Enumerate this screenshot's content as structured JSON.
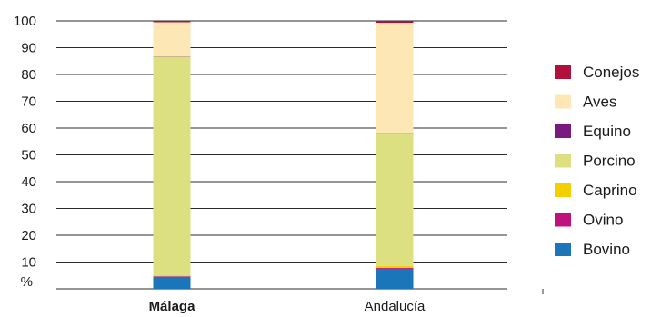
{
  "chart_data": {
    "type": "bar",
    "stacked": true,
    "categories": [
      "Málaga",
      "Andalucía"
    ],
    "category_bold": [
      true,
      false
    ],
    "ylim": [
      0,
      100
    ],
    "yticks": [
      10,
      20,
      30,
      40,
      50,
      60,
      70,
      80,
      90,
      100
    ],
    "ylabel": "%",
    "grid": true,
    "legend_position": "right",
    "series": [
      {
        "name": "Bovino",
        "color": "#1a75b9",
        "values": [
          4.5,
          7.5
        ]
      },
      {
        "name": "Ovino",
        "color": "#c0127f",
        "values": [
          0.2,
          0.3
        ]
      },
      {
        "name": "Caprino",
        "color": "#f3cf00",
        "values": [
          0.3,
          0.7
        ]
      },
      {
        "name": "Porcino",
        "color": "#dde080",
        "values": [
          81.7,
          49.5
        ]
      },
      {
        "name": "Equino",
        "color": "#7a1a7e",
        "values": [
          0.1,
          0.1
        ]
      },
      {
        "name": "Aves",
        "color": "#fde7b5",
        "values": [
          12.7,
          41.2
        ]
      },
      {
        "name": "Conejos",
        "color": "#b0103b",
        "values": [
          0.5,
          0.7
        ]
      }
    ]
  }
}
